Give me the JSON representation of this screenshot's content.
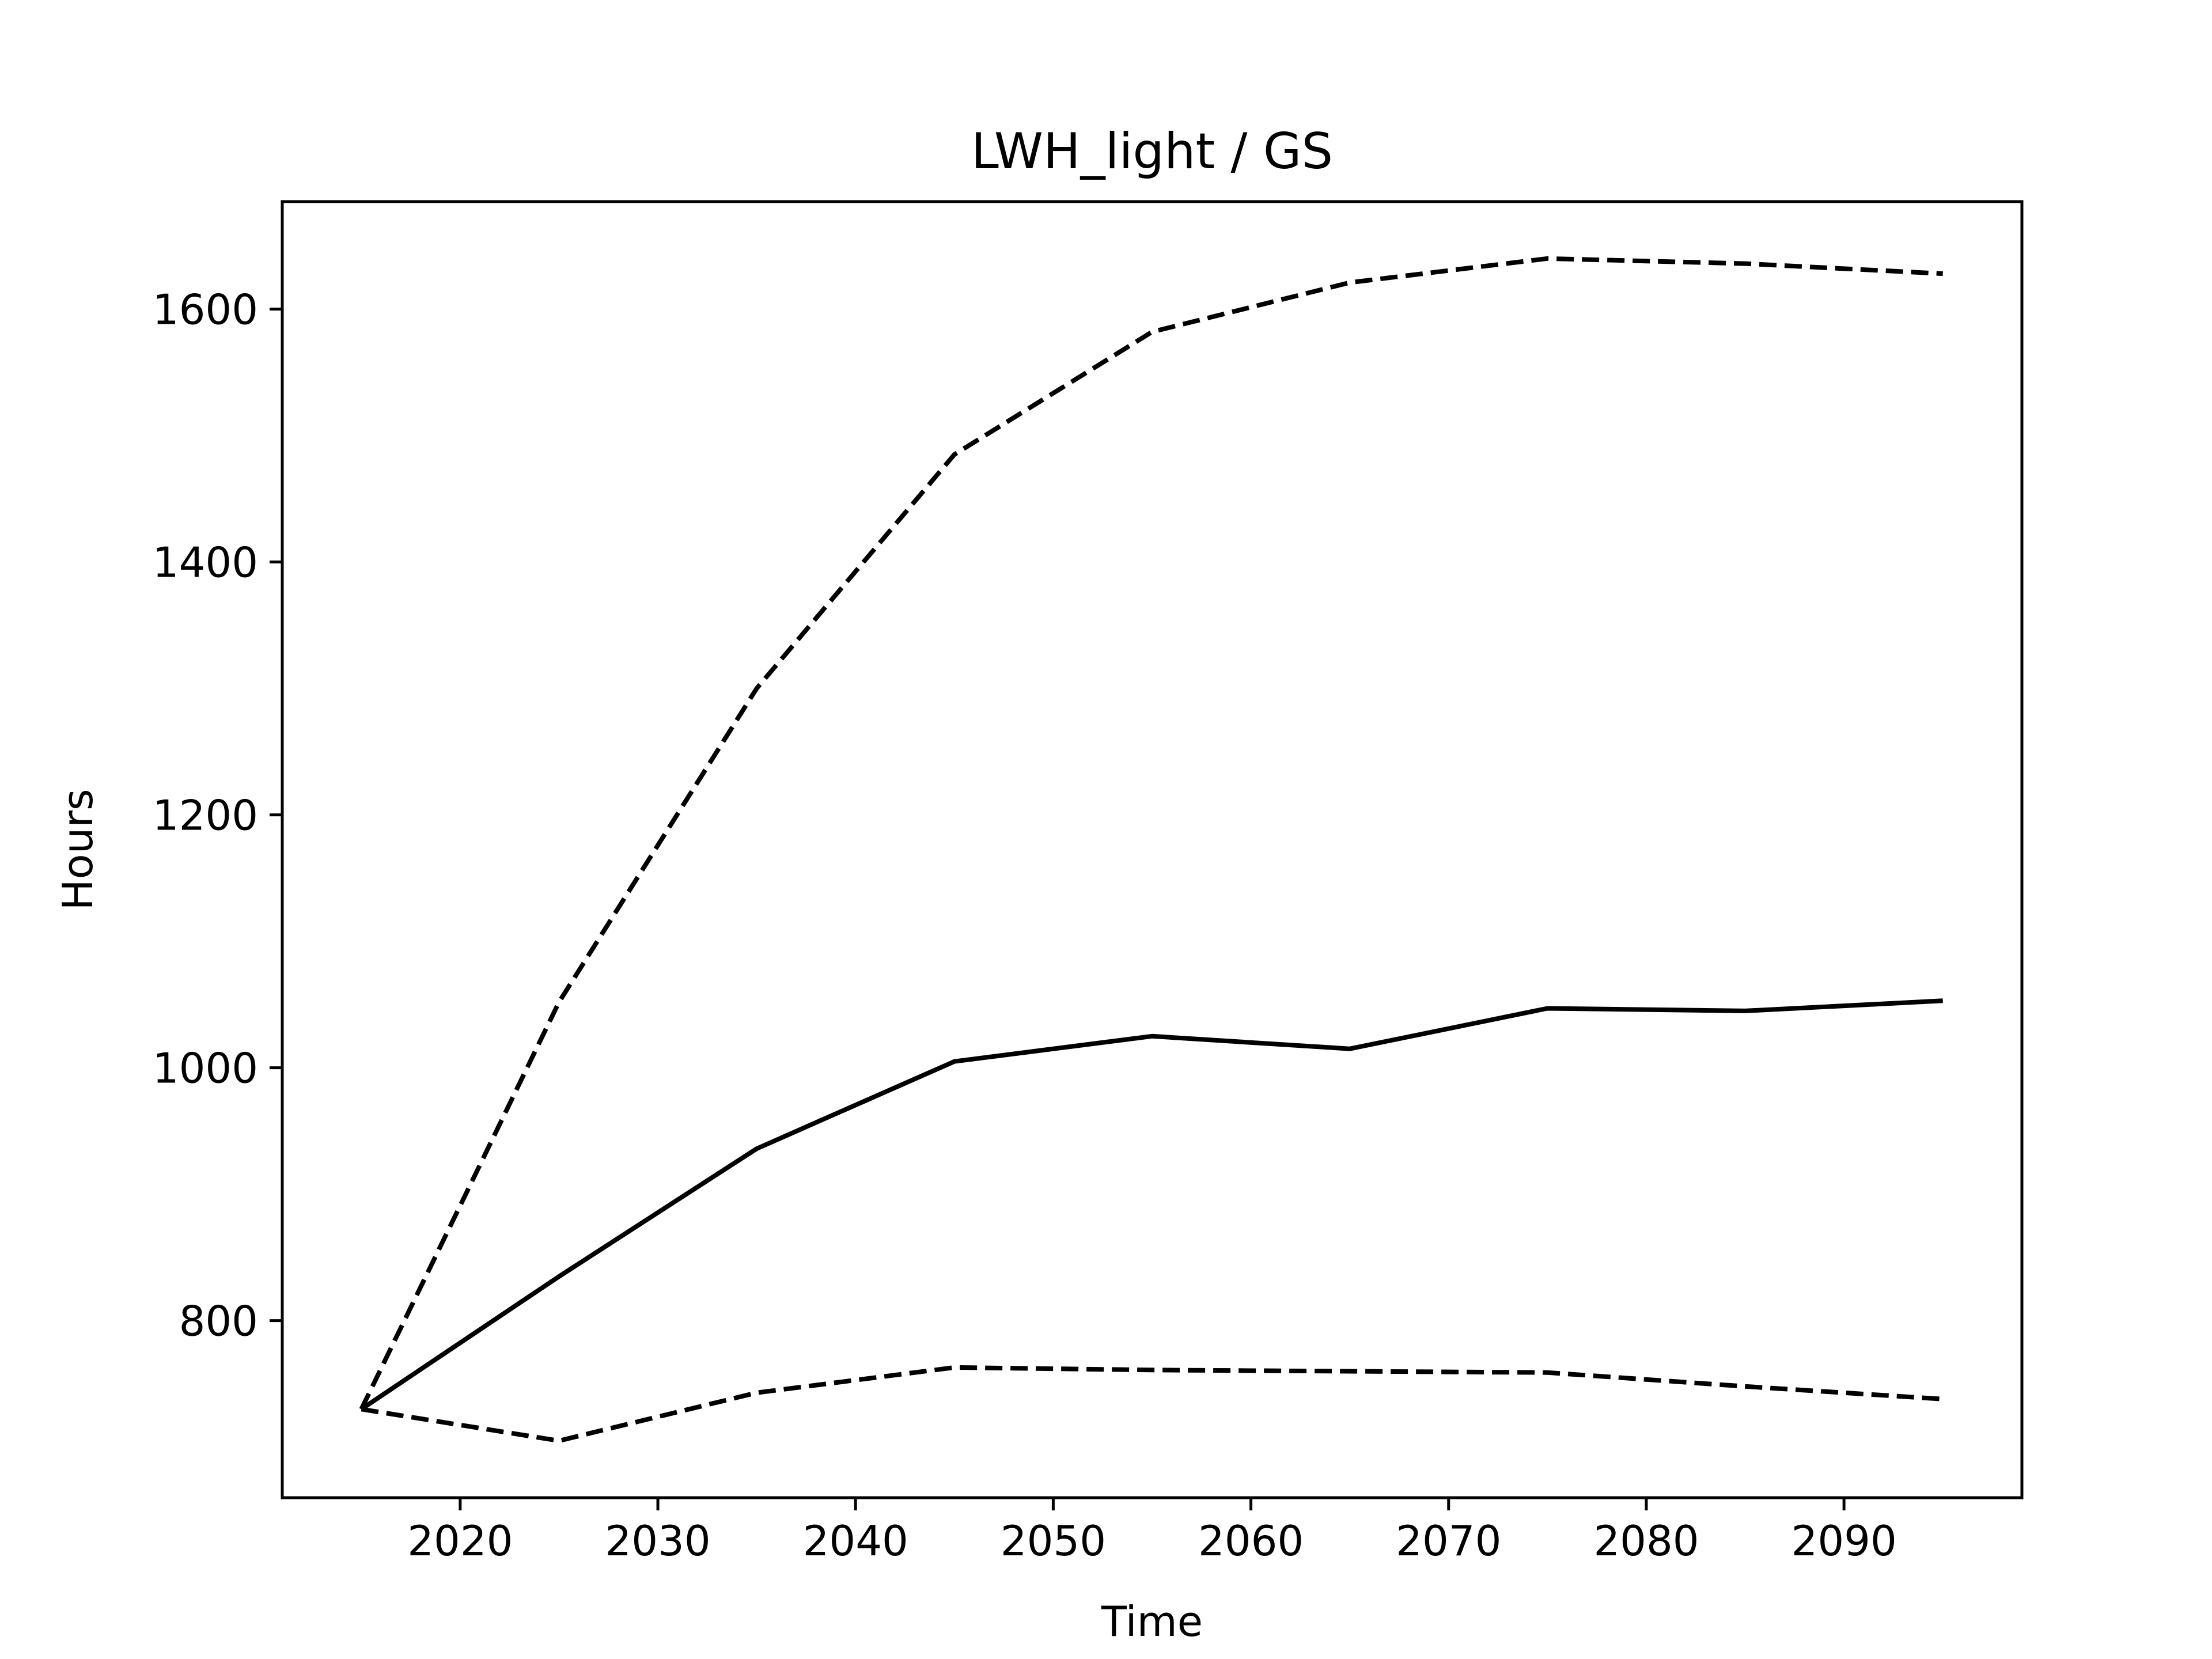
{
  "chart_data": {
    "type": "line",
    "title": "LWH_light / GS",
    "xlabel": "Time",
    "ylabel": "Hours",
    "xlim": [
      2011,
      2099
    ],
    "ylim": [
      660,
      1685
    ],
    "xticks": [
      2020,
      2030,
      2040,
      2050,
      2060,
      2070,
      2080,
      2090
    ],
    "yticks": [
      800,
      1000,
      1200,
      1400,
      1600
    ],
    "grid": false,
    "legend": "none",
    "x": [
      2015,
      2025,
      2035,
      2045,
      2055,
      2065,
      2075,
      2085,
      2095
    ],
    "series": [
      {
        "style": "dashed",
        "color": "#000000",
        "values": [
          730,
          1052,
          1300,
          1485,
          1582,
          1621,
          1640,
          1636,
          1628
        ]
      },
      {
        "style": "solid",
        "color": "#000000",
        "values": [
          730,
          835,
          936,
          1005,
          1025,
          1015,
          1047,
          1045,
          1053
        ]
      },
      {
        "style": "dashed",
        "color": "#000000",
        "values": [
          730,
          705,
          743,
          763,
          761,
          760,
          759,
          748,
          738
        ]
      }
    ]
  }
}
